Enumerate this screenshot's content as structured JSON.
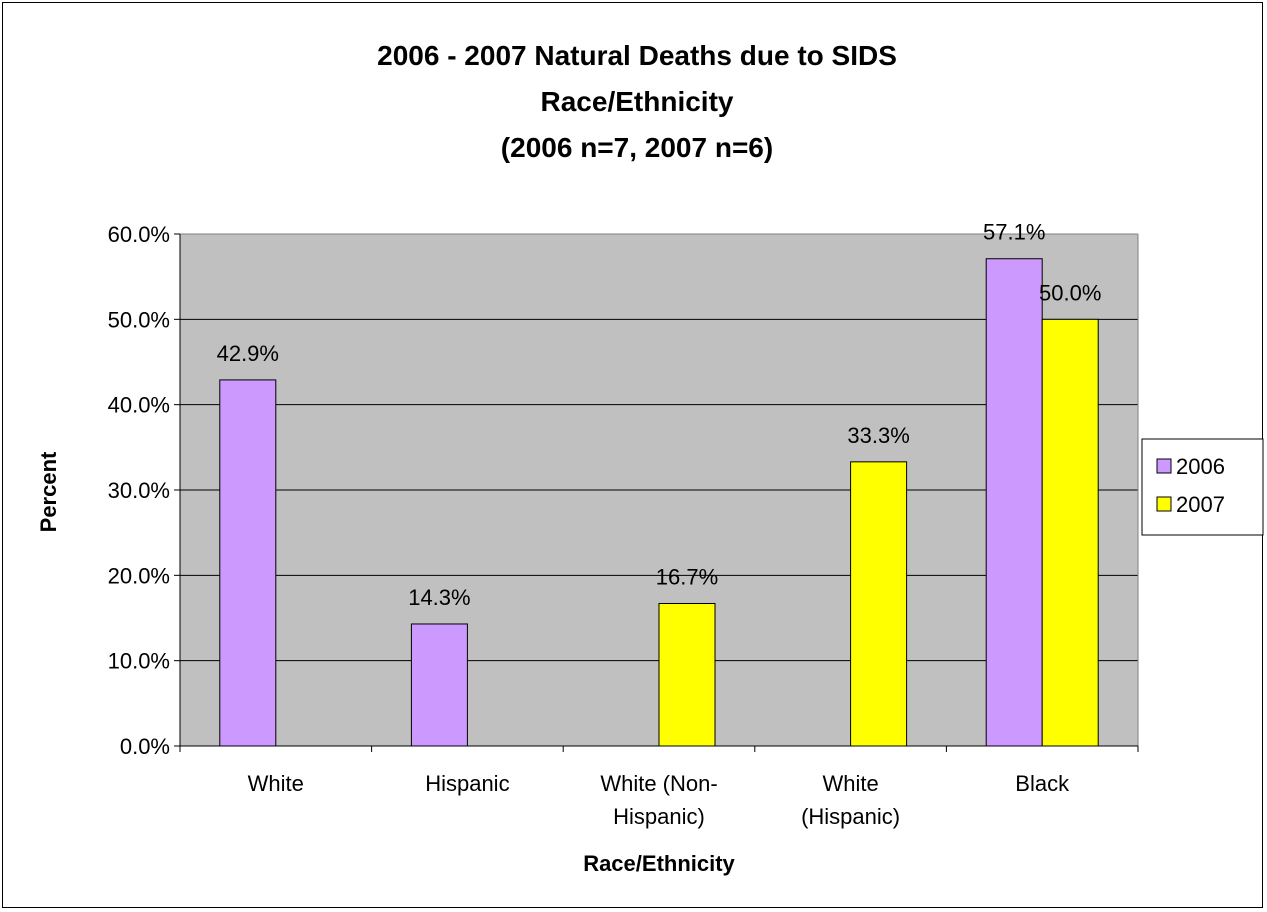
{
  "chart_data": {
    "type": "bar",
    "title_lines": [
      "2006 - 2007 Natural Deaths due to SIDS",
      "Race/Ethnicity",
      "(2006 n=7, 2007 n=6)"
    ],
    "xlabel": "Race/Ethnicity",
    "ylabel": "Percent",
    "categories": [
      [
        "White"
      ],
      [
        "Hispanic"
      ],
      [
        "White (Non-",
        "Hispanic)"
      ],
      [
        "White",
        "(Hispanic)"
      ],
      [
        "Black"
      ]
    ],
    "series": [
      {
        "name": "2006",
        "color": "#cc99ff",
        "values": [
          42.9,
          14.3,
          null,
          null,
          57.1
        ],
        "labels": [
          "42.9%",
          "14.3%",
          null,
          null,
          "57.1%"
        ]
      },
      {
        "name": "2007",
        "color": "#ffff00",
        "values": [
          null,
          null,
          16.7,
          33.3,
          50.0
        ],
        "labels": [
          null,
          null,
          "16.7%",
          "33.3%",
          "50.0%"
        ]
      }
    ],
    "ylim": [
      0,
      60
    ],
    "yticks": [
      "0.0%",
      "10.0%",
      "20.0%",
      "30.0%",
      "40.0%",
      "50.0%",
      "60.0%"
    ],
    "plot_background": "#c0c0c0",
    "grid": true,
    "legend_position": "right"
  }
}
